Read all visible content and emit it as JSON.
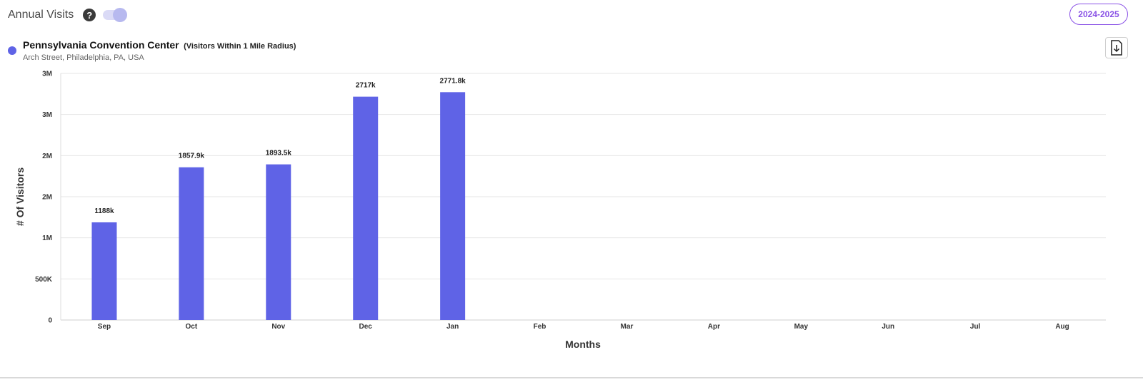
{
  "header": {
    "title": "Annual Visits",
    "help_icon": "question-circle-icon",
    "toggle_state": "on"
  },
  "period": "2024-2025",
  "venue": {
    "name": "Pennsylvania Convention Center",
    "radius_note": "(Visitors Within 1 Mile Radius)",
    "address": "Arch Street, Philadelphia, PA, USA"
  },
  "download_icon": "download-file-icon",
  "colors": {
    "bar": "#5f63e6",
    "accent": "#8a52e6",
    "grid": "#e6e6e6"
  },
  "chart_data": {
    "type": "bar",
    "title": "",
    "xlabel": "Months",
    "ylabel": "# Of Visitors",
    "categories": [
      "Sep",
      "Oct",
      "Nov",
      "Dec",
      "Jan",
      "Feb",
      "Mar",
      "Apr",
      "May",
      "Jun",
      "Jul",
      "Aug"
    ],
    "series": [
      {
        "values": [
          1188000,
          1857900,
          1893500,
          2717000,
          2771800,
          null,
          null,
          null,
          null,
          null,
          null,
          null
        ]
      }
    ],
    "data_labels": [
      "1188k",
      "1857.9k",
      "1893.5k",
      "2717k",
      "2771.8k",
      "",
      "",
      "",
      "",
      "",
      "",
      ""
    ],
    "y_ticks": [
      0,
      500000,
      1000000,
      1500000,
      2000000,
      2500000,
      3000000
    ],
    "y_tick_labels": [
      "0",
      "500K",
      "1M",
      "2M",
      "2M",
      "3M",
      "3M"
    ],
    "ylim": [
      0,
      3000000
    ],
    "grid": true,
    "legend": "none"
  }
}
